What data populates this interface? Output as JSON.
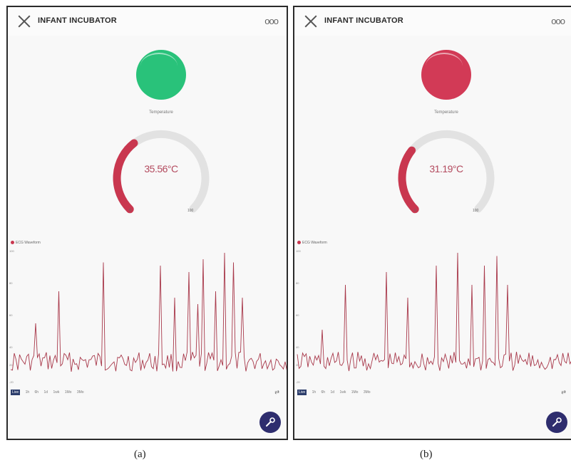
{
  "panels": [
    {
      "app_title": "INFANT INCUBATOR",
      "more_icon": "ooo",
      "status_color": "#29c27a",
      "gauge_label": "Temperature",
      "gauge_value": "35.56°C",
      "gauge_fraction": 0.36,
      "gauge_min": "0",
      "gauge_max": "100",
      "legend": "ECG Waveform",
      "y_ticks": [
        "100",
        "80",
        "60",
        "40",
        "20",
        "-20"
      ],
      "ranges": [
        "Live",
        "1h",
        "6h",
        "1d",
        "1wk",
        "1Mo",
        "3Mo"
      ],
      "caption": "(a)"
    },
    {
      "app_title": "INFANT INCUBATOR",
      "more_icon": "ooo",
      "status_color": "#d23a56",
      "gauge_label": "Temperature",
      "gauge_value": "31.19°C",
      "gauge_fraction": 0.31,
      "gauge_min": "0",
      "gauge_max": "100",
      "legend": "ECG Waveform",
      "y_ticks": [
        "100",
        "80",
        "60",
        "40",
        "20",
        "-20"
      ],
      "ranges": [
        "Live",
        "1h",
        "6h",
        "1d",
        "1wk",
        "1Mo",
        "3Mo"
      ],
      "caption": "(b)"
    }
  ],
  "colors": {
    "gauge_fill": "#c9374f",
    "gauge_track": "#e2e2e2",
    "waveform": "#a8384a",
    "fab": "#2e2d6e"
  }
}
